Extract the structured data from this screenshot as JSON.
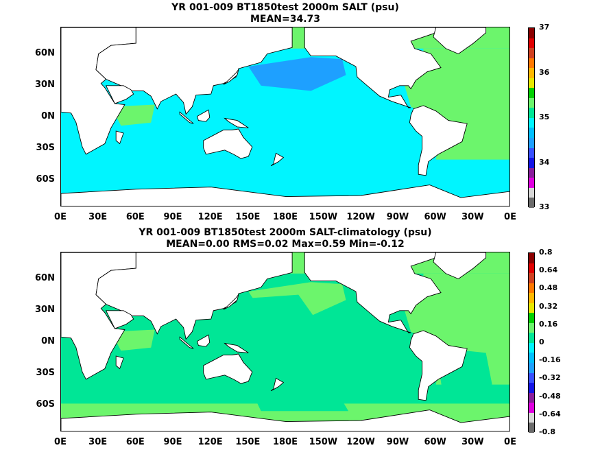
{
  "panels": [
    {
      "title_line1": "YR 001-009 BT1850test 2000m SALT (psu)",
      "title_line2": "MEAN=34.73",
      "colors": [
        "#6b6b6b",
        "#d7d7d7",
        "#e000e0",
        "#8a1d9c",
        "#1414e6",
        "#3850ff",
        "#1ea0ff",
        "#00bfff",
        "#00f5ff",
        "#00e696",
        "#6cf56c",
        "#00d000",
        "#e8e800",
        "#ffb800",
        "#ff7800",
        "#d04020",
        "#e00000",
        "#8b0000"
      ],
      "labels": [
        "37",
        "36",
        "35",
        "34",
        "33"
      ],
      "base_color": "#00f5ff",
      "atlantic_color": "#6cf56c",
      "med_color": "#8b0000",
      "npac_color": "#1ea0ff"
    },
    {
      "title_line1": "YR 001-009 BT1850test 2000m SALT-climatology (psu)",
      "title_line2": "MEAN=0.00   RMS=0.02   Max=0.59   Min=-0.12",
      "colors": [
        "#6b6b6b",
        "#d7d7d7",
        "#e000e0",
        "#8a1d9c",
        "#1414e6",
        "#3850ff",
        "#1ea0ff",
        "#00bfff",
        "#00f5ff",
        "#00e696",
        "#6cf56c",
        "#00d000",
        "#e8e800",
        "#ffb800",
        "#ff7800",
        "#d04020",
        "#e00000",
        "#8b0000"
      ],
      "labels": [
        "0.8",
        "0.64",
        "0.48",
        "0.32",
        "0.16",
        "0",
        "-0.16",
        "-0.32",
        "-0.48",
        "-0.64",
        "-0.8"
      ],
      "base_color": "#00e696",
      "atlantic_color": "#6cf56c",
      "med_color": "#6cf56c",
      "npac_color": "#6cf56c"
    }
  ],
  "lat_labels": [
    "60N",
    "30N",
    "0N",
    "30S",
    "60S"
  ],
  "lon_labels": [
    "0E",
    "30E",
    "60E",
    "90E",
    "120E",
    "150E",
    "180E",
    "150W",
    "120W",
    "90W",
    "60W",
    "30W",
    "0E"
  ]
}
